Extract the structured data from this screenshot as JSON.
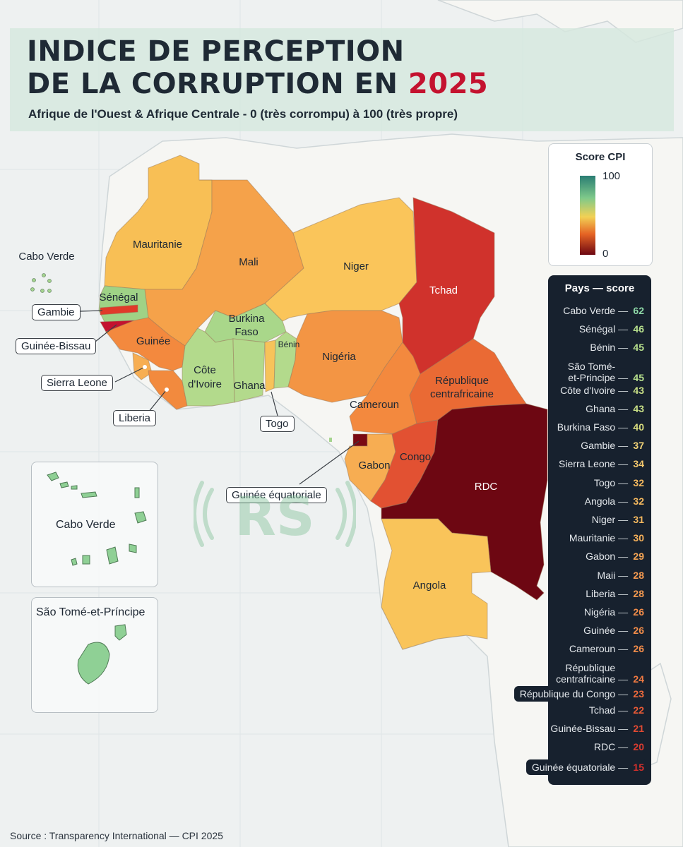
{
  "header": {
    "title_line1": "INDICE DE PERCEPTION",
    "title_line2": "DE LA CORRUPTION EN",
    "title_year": "2025",
    "subtitle": "Afrique de l'Ouest & Afrique Centrale - 0 (très corrompu) à 100 (très propre)"
  },
  "legend": {
    "title": "Score CPI",
    "max": "100",
    "min": "0",
    "gradient_colors": [
      "#2a7d73",
      "#7ec98a",
      "#f2d155",
      "#e56324",
      "#6d0712"
    ]
  },
  "map_labels": {
    "mauritanie": "Mauritanie",
    "mali": "Mali",
    "niger": "Niger",
    "tchad": "Tchad",
    "senegal": "Sénégal",
    "burkina_line1": "Burkina",
    "burkina_line2": "Faso",
    "guinee": "Guinée",
    "benin": "Bénin",
    "nigeria": "Nigéria",
    "cote_line1": "Côte",
    "cote_line2": "d'Ivoire",
    "ghana": "Ghana",
    "rca_line1": "République",
    "rca_line2": "centrafricaine",
    "cameroun": "Cameroun",
    "gabon": "Gabon",
    "congo": "Congo",
    "rdc": "RDC",
    "angola": "Angola",
    "cabo_verde_main": "Cabo Verde"
  },
  "callouts": {
    "gambie": "Gambie",
    "guinee_bissau": "Guinée-Bissau",
    "sierra_leone": "Sierra Leone",
    "liberia": "Liberia",
    "togo": "Togo",
    "guinee_equatoriale": "Guinée équatoriale"
  },
  "insets": {
    "cabo_verde": "Cabo Verde",
    "sao_tome": "São Tomé-et-Príncipe"
  },
  "ranking": {
    "title": "Pays — score",
    "separator": "—",
    "items": [
      {
        "name": "Cabo Verde",
        "score": "62",
        "color": "#8fd9a8"
      },
      {
        "name": "Sénégal",
        "score": "46",
        "color": "#b6df8c"
      },
      {
        "name": "Bénin",
        "score": "45",
        "color": "#b6df8c"
      },
      {
        "name": "São Tomé-",
        "name2": "et-Principe",
        "score": "45",
        "color": "#b6df8c"
      },
      {
        "name": "Côte d'Ivoire",
        "score": "43",
        "color": "#c8df86"
      },
      {
        "name": "Ghana",
        "score": "43",
        "color": "#c8df86"
      },
      {
        "name": "Burkina Faso",
        "score": "40",
        "color": "#d8dc7e"
      },
      {
        "name": "Gambie",
        "score": "37",
        "color": "#f2d377"
      },
      {
        "name": "Sierra Leone",
        "score": "34",
        "color": "#f2c66c"
      },
      {
        "name": "Togo",
        "score": "32",
        "color": "#f5b95f"
      },
      {
        "name": "Angola",
        "score": "32",
        "color": "#f5b95f"
      },
      {
        "name": "Niger",
        "score": "31",
        "color": "#f5b95f"
      },
      {
        "name": "Mauritanie",
        "score": "30",
        "color": "#f5b05a"
      },
      {
        "name": "Gabon",
        "score": "29",
        "color": "#f5a555"
      },
      {
        "name": "Maii",
        "score": "28",
        "color": "#f59a50"
      },
      {
        "name": "Liberia",
        "score": "28",
        "color": "#f59a50"
      },
      {
        "name": "Nigéria",
        "score": "26",
        "color": "#f38d4a"
      },
      {
        "name": "Guinée",
        "score": "26",
        "color": "#f38d4a"
      },
      {
        "name": "Cameroun",
        "score": "26",
        "color": "#f38d4a"
      },
      {
        "name": "République",
        "name2": "centrafricaine",
        "score": "24",
        "color": "#f07a42"
      },
      {
        "name": "République du Congo",
        "score": "23",
        "color": "#ee6a3c"
      },
      {
        "name": "Tchad",
        "score": "22",
        "color": "#e85a36"
      },
      {
        "name": "Guinée-Bissau",
        "score": "21",
        "color": "#e24a32"
      },
      {
        "name": "RDC",
        "score": "20",
        "color": "#dc3c30"
      },
      {
        "name": "Guinée équatoriale",
        "score": "15",
        "color": "#d4302c"
      }
    ]
  },
  "source": "Source : Transparency International — CPI 2025"
}
